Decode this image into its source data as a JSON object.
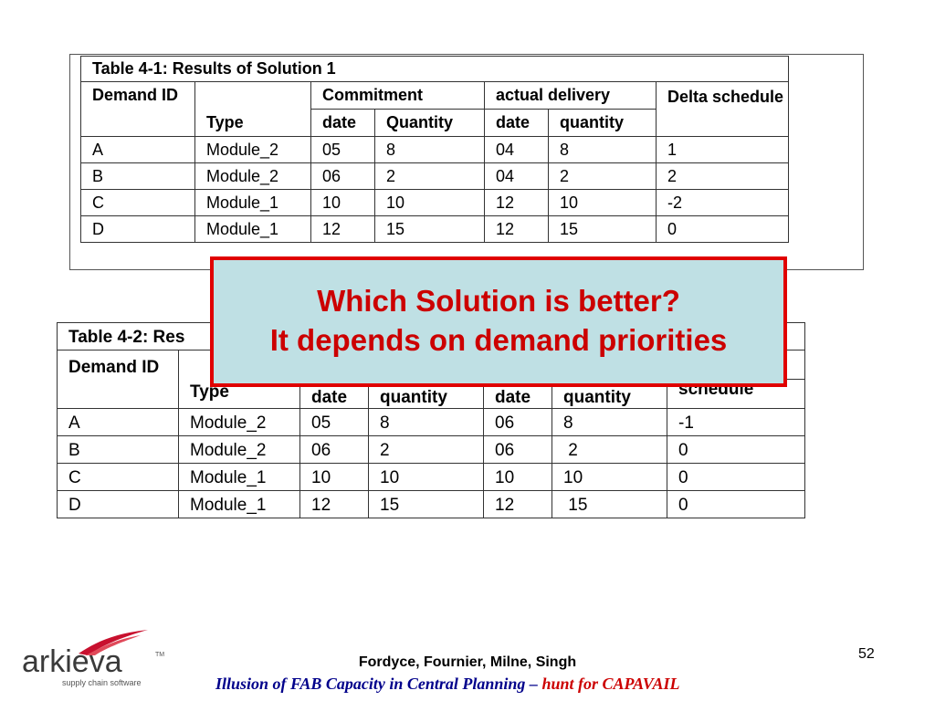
{
  "table1": {
    "title": "Table 4-1: Results of Solution 1",
    "headers": {
      "demand_id": "Demand ID",
      "type": "Type",
      "commitment": "Commitment",
      "actual_delivery": "actual delivery",
      "delta_schedule": "Delta schedule",
      "c_date": "date",
      "c_quantity": "Quantity",
      "a_date": "date",
      "a_quantity": "quantity"
    },
    "rows": [
      {
        "id": "A",
        "type": "Module_2",
        "c_date": "05",
        "c_qty": "8",
        "a_date": "04",
        "a_qty": "8",
        "delta": "1"
      },
      {
        "id": "B",
        "type": "Module_2",
        "c_date": "06",
        "c_qty": "2",
        "a_date": "04",
        "a_qty": "2",
        "delta": "2"
      },
      {
        "id": "C",
        "type": "Module_1",
        "c_date": "10",
        "c_qty": "10",
        "a_date": "12",
        "a_qty": "10",
        "delta": "-2"
      },
      {
        "id": "D",
        "type": "Module_1",
        "c_date": "12",
        "c_qty": "15",
        "a_date": "12",
        "a_qty": "15",
        "delta": "0"
      }
    ]
  },
  "table2": {
    "title": "Table 4-2: Res",
    "headers": {
      "demand_id": "Demand ID",
      "type": "Type",
      "c_date": "date",
      "c_quantity": "quantity",
      "a_date": "date",
      "a_quantity": "quantity",
      "delta_schedule": "schedule"
    },
    "rows": [
      {
        "id": "A",
        "type": "Module_2",
        "c_date": "05",
        "c_qty": "8",
        "a_date": "06",
        "a_qty": "8",
        "delta": "-1"
      },
      {
        "id": "B",
        "type": "Module_2",
        "c_date": "06",
        "c_qty": "2",
        "a_date": "06",
        "a_qty": " 2",
        "delta": "0"
      },
      {
        "id": "C",
        "type": "Module_1",
        "c_date": "10",
        "c_qty": "10",
        "a_date": "10",
        "a_qty": "10",
        "delta": "0"
      },
      {
        "id": "D",
        "type": "Module_1",
        "c_date": "12",
        "c_qty": "15",
        "a_date": "12",
        "a_qty": " 15",
        "delta": "0"
      }
    ]
  },
  "callout": {
    "line1": "Which Solution is better?",
    "line2": "It depends on demand priorities"
  },
  "footer": {
    "logo_text": "arkieva",
    "logo_tm": "TM",
    "logo_tagline": "supply chain software",
    "authors": "Fordyce, Fournier, Milne, Singh",
    "subtitle_main": "Illusion of FAB Capacity in Central Planning – ",
    "subtitle_red": "hunt for CAPAVAIL",
    "page_number": "52"
  },
  "colors": {
    "callout_bg": "#bfe0e4",
    "callout_border": "#e00000",
    "callout_text": "#cc0000",
    "subtitle_blue": "#00008b",
    "subtitle_red": "#cc0000",
    "logo_swoosh": "#c8102e"
  }
}
